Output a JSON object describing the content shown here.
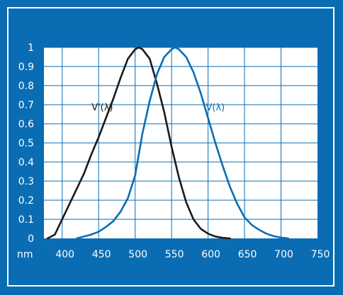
{
  "chart_data": {
    "type": "line",
    "x_unit_label": "nm",
    "x_ticks": [
      400,
      450,
      500,
      550,
      600,
      650,
      700,
      750
    ],
    "y_ticks": [
      0,
      0.1,
      0.2,
      0.3,
      0.4,
      0.5,
      0.6,
      0.7,
      0.8,
      0.9,
      1
    ],
    "y_tick_labels": [
      "0",
      "0.1",
      "0.2",
      "0.3",
      "0.4",
      "0.5",
      "0.6",
      "0.7",
      "0.8",
      "0.9",
      "1"
    ],
    "xlim": [
      375,
      750
    ],
    "ylim": [
      0,
      1
    ],
    "grid": true,
    "series": [
      {
        "name": "V'(λ)",
        "color": "#1a1a1a",
        "x": [
          380,
          390,
          400,
          410,
          420,
          430,
          440,
          450,
          460,
          470,
          480,
          490,
          500,
          505,
          510,
          520,
          530,
          540,
          550,
          560,
          570,
          580,
          590,
          600,
          610,
          620,
          630
        ],
        "y": [
          0.0,
          0.02,
          0.1,
          0.18,
          0.26,
          0.34,
          0.44,
          0.53,
          0.63,
          0.73,
          0.84,
          0.94,
          0.99,
          1.0,
          0.99,
          0.94,
          0.81,
          0.66,
          0.48,
          0.32,
          0.19,
          0.1,
          0.05,
          0.025,
          0.01,
          0.003,
          0.0
        ]
      },
      {
        "name": "V(λ)",
        "color": "#0a6db3",
        "x": [
          420,
          430,
          440,
          450,
          460,
          470,
          480,
          490,
          500,
          510,
          520,
          530,
          540,
          550,
          555,
          560,
          570,
          580,
          590,
          600,
          610,
          620,
          630,
          640,
          650,
          660,
          670,
          680,
          690,
          700,
          710
        ],
        "y": [
          0.0,
          0.01,
          0.02,
          0.035,
          0.06,
          0.09,
          0.14,
          0.21,
          0.33,
          0.55,
          0.72,
          0.86,
          0.95,
          0.99,
          1.0,
          0.99,
          0.95,
          0.87,
          0.76,
          0.63,
          0.5,
          0.38,
          0.27,
          0.18,
          0.11,
          0.07,
          0.045,
          0.025,
          0.012,
          0.004,
          0.0
        ]
      }
    ],
    "curve_labels": [
      {
        "text": "V'(λ)",
        "color": "#1a1a1a",
        "x": 455,
        "y": 0.67
      },
      {
        "text": "V(λ)",
        "color": "#0a6db3",
        "x": 610,
        "y": 0.67
      }
    ]
  }
}
